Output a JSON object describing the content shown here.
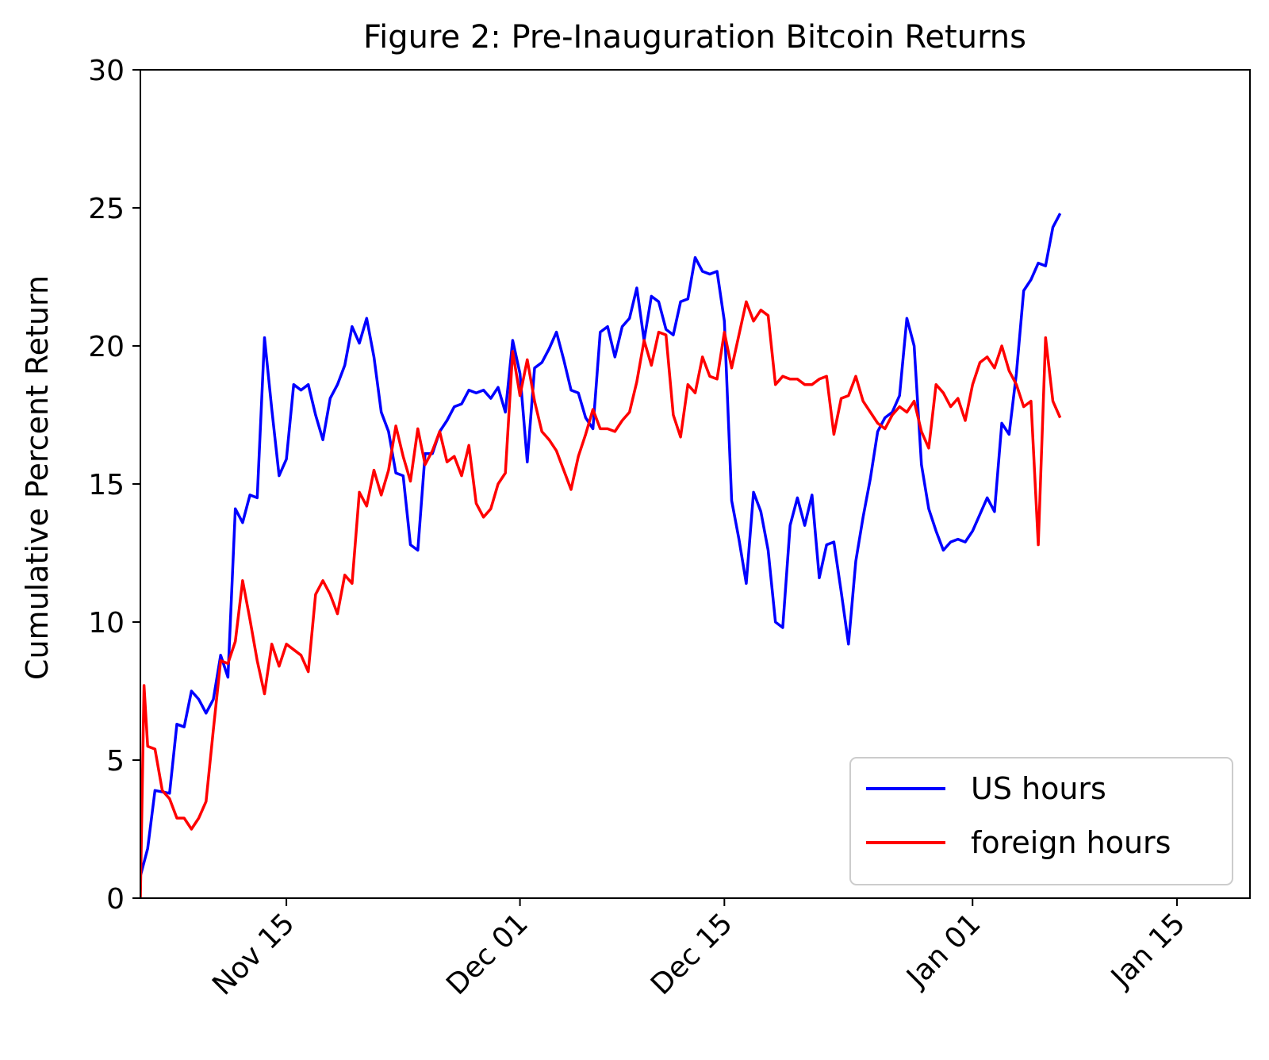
{
  "chart_data": {
    "type": "line",
    "title": "Figure 2: Pre-Inauguration Bitcoin Returns",
    "xlabel": "",
    "ylabel": "Cumulative Percent Return",
    "x_type": "date",
    "xlim": [
      "2024-11-05",
      "2025-01-20"
    ],
    "ylim": [
      0,
      30
    ],
    "xticks": [
      {
        "date": "2024-11-15",
        "label": "Nov 15"
      },
      {
        "date": "2024-12-01",
        "label": "Dec 01"
      },
      {
        "date": "2024-12-15",
        "label": "Dec 15"
      },
      {
        "date": "2025-01-01",
        "label": "Jan 01"
      },
      {
        "date": "2025-01-15",
        "label": "Jan 15"
      }
    ],
    "yticks": [
      0,
      5,
      10,
      15,
      20,
      25,
      30
    ],
    "grid": false,
    "legend_position": "lower right",
    "series": [
      {
        "name": "US hours",
        "color": "#0000ff",
        "points": [
          [
            "2024-11-05",
            0.8
          ],
          [
            "2024-11-05 12:00",
            1.8
          ],
          [
            "2024-11-06",
            3.9
          ],
          [
            "2024-11-07",
            3.8
          ],
          [
            "2024-11-07 12:00",
            6.3
          ],
          [
            "2024-11-08",
            6.2
          ],
          [
            "2024-11-08 12:00",
            7.5
          ],
          [
            "2024-11-09",
            7.2
          ],
          [
            "2024-11-09 12:00",
            6.7
          ],
          [
            "2024-11-10",
            7.2
          ],
          [
            "2024-11-10 12:00",
            8.8
          ],
          [
            "2024-11-11",
            8.0
          ],
          [
            "2024-11-11 12:00",
            14.1
          ],
          [
            "2024-11-12",
            13.6
          ],
          [
            "2024-11-12 12:00",
            14.6
          ],
          [
            "2024-11-13",
            14.5
          ],
          [
            "2024-11-13 12:00",
            20.3
          ],
          [
            "2024-11-14",
            17.7
          ],
          [
            "2024-11-14 12:00",
            15.3
          ],
          [
            "2024-11-15",
            15.9
          ],
          [
            "2024-11-15 12:00",
            18.6
          ],
          [
            "2024-11-16",
            18.4
          ],
          [
            "2024-11-16 12:00",
            18.6
          ],
          [
            "2024-11-17",
            17.5
          ],
          [
            "2024-11-17 12:00",
            16.6
          ],
          [
            "2024-11-18",
            18.1
          ],
          [
            "2024-11-18 12:00",
            18.6
          ],
          [
            "2024-11-19",
            19.3
          ],
          [
            "2024-11-19 12:00",
            20.7
          ],
          [
            "2024-11-20",
            20.1
          ],
          [
            "2024-11-20 12:00",
            21.0
          ],
          [
            "2024-11-21",
            19.6
          ],
          [
            "2024-11-21 12:00",
            17.6
          ],
          [
            "2024-11-22",
            16.9
          ],
          [
            "2024-11-22 12:00",
            15.4
          ],
          [
            "2024-11-23",
            15.3
          ],
          [
            "2024-11-23 12:00",
            12.8
          ],
          [
            "2024-11-24",
            12.6
          ],
          [
            "2024-11-24 12:00",
            16.1
          ],
          [
            "2024-11-25",
            16.1
          ],
          [
            "2024-11-25 12:00",
            16.9
          ],
          [
            "2024-11-26",
            17.3
          ],
          [
            "2024-11-26 12:00",
            17.8
          ],
          [
            "2024-11-27",
            17.9
          ],
          [
            "2024-11-27 12:00",
            18.4
          ],
          [
            "2024-11-28",
            18.3
          ],
          [
            "2024-11-28 12:00",
            18.4
          ],
          [
            "2024-11-29",
            18.1
          ],
          [
            "2024-11-29 12:00",
            18.5
          ],
          [
            "2024-11-30",
            17.6
          ],
          [
            "2024-11-30 12:00",
            20.2
          ],
          [
            "2024-12-01",
            19.0
          ],
          [
            "2024-12-01 12:00",
            15.8
          ],
          [
            "2024-12-02",
            19.2
          ],
          [
            "2024-12-02 12:00",
            19.4
          ],
          [
            "2024-12-03",
            19.9
          ],
          [
            "2024-12-03 12:00",
            20.5
          ],
          [
            "2024-12-04",
            19.5
          ],
          [
            "2024-12-04 12:00",
            18.4
          ],
          [
            "2024-12-05",
            18.3
          ],
          [
            "2024-12-05 12:00",
            17.4
          ],
          [
            "2024-12-06",
            17.0
          ],
          [
            "2024-12-06 12:00",
            20.5
          ],
          [
            "2024-12-07",
            20.7
          ],
          [
            "2024-12-07 12:00",
            19.6
          ],
          [
            "2024-12-08",
            20.7
          ],
          [
            "2024-12-08 12:00",
            21.0
          ],
          [
            "2024-12-09",
            22.1
          ],
          [
            "2024-12-09 12:00",
            20.2
          ],
          [
            "2024-12-10",
            21.8
          ],
          [
            "2024-12-10 12:00",
            21.6
          ],
          [
            "2024-12-11",
            20.6
          ],
          [
            "2024-12-11 12:00",
            20.4
          ],
          [
            "2024-12-12",
            21.6
          ],
          [
            "2024-12-12 12:00",
            21.7
          ],
          [
            "2024-12-13",
            23.2
          ],
          [
            "2024-12-13 12:00",
            22.7
          ],
          [
            "2024-12-14",
            22.6
          ],
          [
            "2024-12-14 12:00",
            22.7
          ],
          [
            "2024-12-15",
            20.9
          ],
          [
            "2024-12-15 12:00",
            14.4
          ],
          [
            "2024-12-16",
            13.0
          ],
          [
            "2024-12-16 12:00",
            11.4
          ],
          [
            "2024-12-17",
            14.7
          ],
          [
            "2024-12-17 12:00",
            14.0
          ],
          [
            "2024-12-18",
            12.6
          ],
          [
            "2024-12-18 12:00",
            10.0
          ],
          [
            "2024-12-19",
            9.8
          ],
          [
            "2024-12-19 12:00",
            13.5
          ],
          [
            "2024-12-20",
            14.5
          ],
          [
            "2024-12-20 12:00",
            13.5
          ],
          [
            "2024-12-21",
            14.6
          ],
          [
            "2024-12-21 12:00",
            11.6
          ],
          [
            "2024-12-22",
            12.8
          ],
          [
            "2024-12-22 12:00",
            12.9
          ],
          [
            "2024-12-23",
            11.1
          ],
          [
            "2024-12-23 12:00",
            9.2
          ],
          [
            "2024-12-24",
            12.2
          ],
          [
            "2024-12-24 12:00",
            13.8
          ],
          [
            "2024-12-25",
            15.2
          ],
          [
            "2024-12-25 12:00",
            16.9
          ],
          [
            "2024-12-26",
            17.4
          ],
          [
            "2024-12-26 12:00",
            17.6
          ],
          [
            "2024-12-27",
            18.2
          ],
          [
            "2024-12-27 12:00",
            21.0
          ],
          [
            "2024-12-28",
            20.0
          ],
          [
            "2024-12-28 12:00",
            15.7
          ],
          [
            "2024-12-29",
            14.1
          ],
          [
            "2024-12-29 12:00",
            13.3
          ],
          [
            "2024-12-30",
            12.6
          ],
          [
            "2024-12-30 12:00",
            12.9
          ],
          [
            "2024-12-31",
            13.0
          ],
          [
            "2024-12-31 12:00",
            12.9
          ],
          [
            "2025-01-01",
            13.3
          ],
          [
            "2025-01-01 12:00",
            13.9
          ],
          [
            "2025-01-02",
            14.5
          ],
          [
            "2025-01-02 12:00",
            14.0
          ],
          [
            "2025-01-03",
            17.2
          ],
          [
            "2025-01-03 12:00",
            16.8
          ],
          [
            "2025-01-04",
            19.0
          ],
          [
            "2025-01-04 12:00",
            22.0
          ],
          [
            "2025-01-05",
            22.4
          ],
          [
            "2025-01-05 12:00",
            23.0
          ],
          [
            "2025-01-06",
            22.9
          ],
          [
            "2025-01-06 12:00",
            24.3
          ],
          [
            "2025-01-07",
            24.8
          ]
        ]
      },
      {
        "name": "foreign hours",
        "color": "#ff0000",
        "points": [
          [
            "2024-11-05",
            0.0
          ],
          [
            "2024-11-05 06:00",
            7.7
          ],
          [
            "2024-11-05 12:00",
            5.5
          ],
          [
            "2024-11-06",
            5.4
          ],
          [
            "2024-11-06 12:00",
            3.9
          ],
          [
            "2024-11-07",
            3.6
          ],
          [
            "2024-11-07 12:00",
            2.9
          ],
          [
            "2024-11-08",
            2.9
          ],
          [
            "2024-11-08 12:00",
            2.5
          ],
          [
            "2024-11-09",
            2.9
          ],
          [
            "2024-11-09 12:00",
            3.5
          ],
          [
            "2024-11-10",
            6.1
          ],
          [
            "2024-11-10 12:00",
            8.6
          ],
          [
            "2024-11-11",
            8.5
          ],
          [
            "2024-11-11 12:00",
            9.3
          ],
          [
            "2024-11-12",
            11.5
          ],
          [
            "2024-11-12 12:00",
            10.1
          ],
          [
            "2024-11-13",
            8.6
          ],
          [
            "2024-11-13 12:00",
            7.4
          ],
          [
            "2024-11-14",
            9.2
          ],
          [
            "2024-11-14 12:00",
            8.4
          ],
          [
            "2024-11-15",
            9.2
          ],
          [
            "2024-11-15 12:00",
            9.0
          ],
          [
            "2024-11-16",
            8.8
          ],
          [
            "2024-11-16 12:00",
            8.2
          ],
          [
            "2024-11-17",
            11.0
          ],
          [
            "2024-11-17 12:00",
            11.5
          ],
          [
            "2024-11-18",
            11.0
          ],
          [
            "2024-11-18 12:00",
            10.3
          ],
          [
            "2024-11-19",
            11.7
          ],
          [
            "2024-11-19 12:00",
            11.4
          ],
          [
            "2024-11-20",
            14.7
          ],
          [
            "2024-11-20 12:00",
            14.2
          ],
          [
            "2024-11-21",
            15.5
          ],
          [
            "2024-11-21 12:00",
            14.6
          ],
          [
            "2024-11-22",
            15.5
          ],
          [
            "2024-11-22 12:00",
            17.1
          ],
          [
            "2024-11-23",
            16.0
          ],
          [
            "2024-11-23 12:00",
            15.1
          ],
          [
            "2024-11-24",
            17.0
          ],
          [
            "2024-11-24 12:00",
            15.7
          ],
          [
            "2024-11-25",
            16.2
          ],
          [
            "2024-11-25 12:00",
            16.9
          ],
          [
            "2024-11-26",
            15.8
          ],
          [
            "2024-11-26 12:00",
            16.0
          ],
          [
            "2024-11-27",
            15.3
          ],
          [
            "2024-11-27 12:00",
            16.4
          ],
          [
            "2024-11-28",
            14.3
          ],
          [
            "2024-11-28 12:00",
            13.8
          ],
          [
            "2024-11-29",
            14.1
          ],
          [
            "2024-11-29 12:00",
            15.0
          ],
          [
            "2024-11-30",
            15.4
          ],
          [
            "2024-11-30 12:00",
            19.8
          ],
          [
            "2024-12-01",
            18.2
          ],
          [
            "2024-12-01 12:00",
            19.5
          ],
          [
            "2024-12-02",
            18.0
          ],
          [
            "2024-12-02 12:00",
            16.9
          ],
          [
            "2024-12-03",
            16.6
          ],
          [
            "2024-12-03 12:00",
            16.2
          ],
          [
            "2024-12-04",
            15.5
          ],
          [
            "2024-12-04 12:00",
            14.8
          ],
          [
            "2024-12-05",
            16.0
          ],
          [
            "2024-12-05 12:00",
            16.8
          ],
          [
            "2024-12-06",
            17.7
          ],
          [
            "2024-12-06 12:00",
            17.0
          ],
          [
            "2024-12-07",
            17.0
          ],
          [
            "2024-12-07 12:00",
            16.9
          ],
          [
            "2024-12-08",
            17.3
          ],
          [
            "2024-12-08 12:00",
            17.6
          ],
          [
            "2024-12-09",
            18.7
          ],
          [
            "2024-12-09 12:00",
            20.2
          ],
          [
            "2024-12-10",
            19.3
          ],
          [
            "2024-12-10 12:00",
            20.5
          ],
          [
            "2024-12-11",
            20.4
          ],
          [
            "2024-12-11 12:00",
            17.5
          ],
          [
            "2024-12-12",
            16.7
          ],
          [
            "2024-12-12 12:00",
            18.6
          ],
          [
            "2024-12-13",
            18.3
          ],
          [
            "2024-12-13 12:00",
            19.6
          ],
          [
            "2024-12-14",
            18.9
          ],
          [
            "2024-12-14 12:00",
            18.8
          ],
          [
            "2024-12-15",
            20.5
          ],
          [
            "2024-12-15 12:00",
            19.2
          ],
          [
            "2024-12-16",
            20.4
          ],
          [
            "2024-12-16 12:00",
            21.6
          ],
          [
            "2024-12-17",
            20.9
          ],
          [
            "2024-12-17 12:00",
            21.3
          ],
          [
            "2024-12-18",
            21.1
          ],
          [
            "2024-12-18 12:00",
            18.6
          ],
          [
            "2024-12-19",
            18.9
          ],
          [
            "2024-12-19 12:00",
            18.8
          ],
          [
            "2024-12-20",
            18.8
          ],
          [
            "2024-12-20 12:00",
            18.6
          ],
          [
            "2024-12-21",
            18.6
          ],
          [
            "2024-12-21 12:00",
            18.8
          ],
          [
            "2024-12-22",
            18.9
          ],
          [
            "2024-12-22 12:00",
            16.8
          ],
          [
            "2024-12-23",
            18.1
          ],
          [
            "2024-12-23 12:00",
            18.2
          ],
          [
            "2024-12-24",
            18.9
          ],
          [
            "2024-12-24 12:00",
            18.0
          ],
          [
            "2024-12-25",
            17.6
          ],
          [
            "2024-12-25 12:00",
            17.2
          ],
          [
            "2024-12-26",
            17.0
          ],
          [
            "2024-12-26 12:00",
            17.5
          ],
          [
            "2024-12-27",
            17.8
          ],
          [
            "2024-12-27 12:00",
            17.6
          ],
          [
            "2024-12-28",
            18.0
          ],
          [
            "2024-12-28 12:00",
            16.9
          ],
          [
            "2024-12-29",
            16.3
          ],
          [
            "2024-12-29 12:00",
            18.6
          ],
          [
            "2024-12-30",
            18.3
          ],
          [
            "2024-12-30 12:00",
            17.8
          ],
          [
            "2024-12-31",
            18.1
          ],
          [
            "2024-12-31 12:00",
            17.3
          ],
          [
            "2025-01-01",
            18.6
          ],
          [
            "2025-01-01 12:00",
            19.4
          ],
          [
            "2025-01-02",
            19.6
          ],
          [
            "2025-01-02 12:00",
            19.2
          ],
          [
            "2025-01-03",
            20.0
          ],
          [
            "2025-01-03 12:00",
            19.1
          ],
          [
            "2025-01-04",
            18.6
          ],
          [
            "2025-01-04 12:00",
            17.8
          ],
          [
            "2025-01-05",
            18.0
          ],
          [
            "2025-01-05 12:00",
            12.8
          ],
          [
            "2025-01-06",
            20.3
          ],
          [
            "2025-01-06 12:00",
            18.0
          ],
          [
            "2025-01-07",
            17.4
          ]
        ]
      }
    ]
  }
}
